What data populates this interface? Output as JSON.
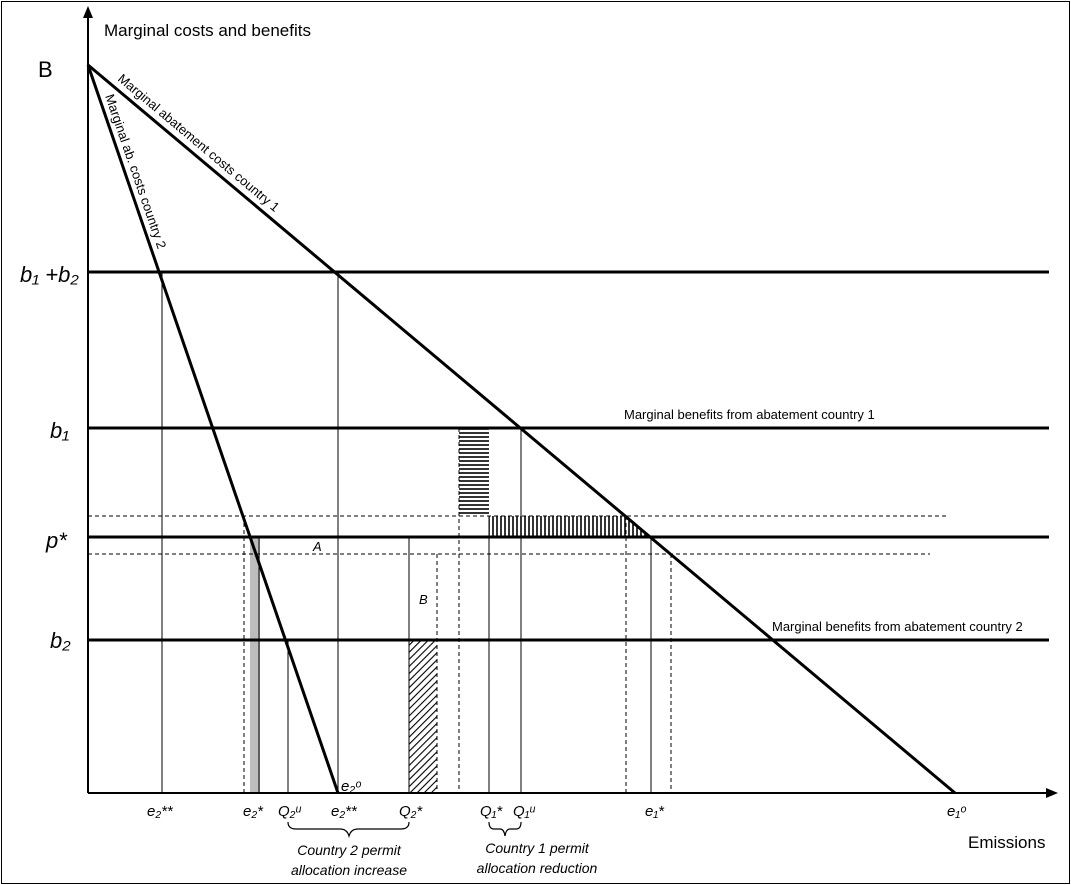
{
  "axes": {
    "y_title": "Marginal costs and benefits",
    "x_title": "Emissions"
  },
  "y_labels": {
    "B": "B",
    "b1b2": "b₁ +b₂",
    "b1": "b₁",
    "pstar": "p*",
    "b2": "b₂"
  },
  "curves": {
    "mac1": "Marginal abatement costs country 1",
    "mac2": "Marginal ab. costs country 2",
    "mb1": "Marginal benefits from abatement country 1",
    "mb2": "Marginal benefits from abatement country 2"
  },
  "x_ticks": {
    "e2ss_a": "e₂**",
    "e2s": "e₂*",
    "q2u": "Q₂ᵘ",
    "e2ss_b": "e₂**",
    "q2s": "Q₂*",
    "q1s": "Q₁*",
    "q1u": "Q₁ᵘ",
    "e1s": "e₁*",
    "e1o": "e₁ᵒ",
    "e2o": "e₂ᵒ"
  },
  "area_labels": {
    "A": "A",
    "B": "B"
  },
  "notes": {
    "country2_line1": "Country 2 permit",
    "country2_line2": "allocation increase",
    "country1_line1": "Country 1 permit",
    "country1_line2": "allocation reduction"
  }
}
